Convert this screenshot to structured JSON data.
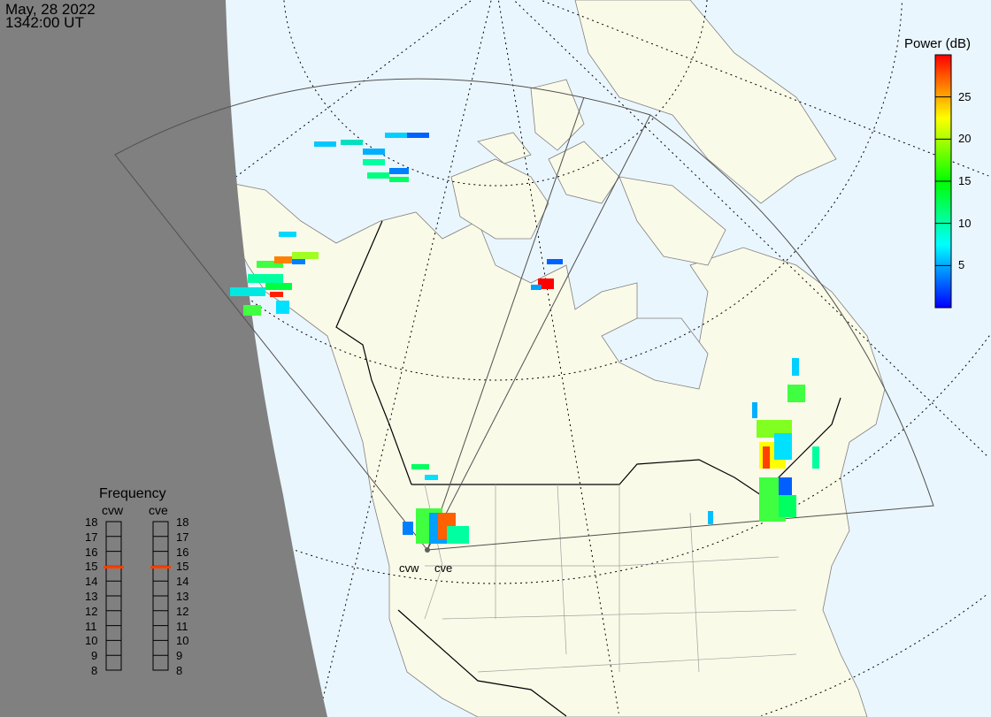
{
  "header": {
    "date": "May, 28 2022",
    "time": "1342:00 UT"
  },
  "colorbar": {
    "title": "Power (dB)",
    "ticks": [
      "25",
      "20",
      "15",
      "10",
      "5"
    ],
    "range": [
      0,
      30
    ],
    "colors": [
      "#0000ff",
      "#0080ff",
      "#00ffff",
      "#00ff80",
      "#00ff00",
      "#80ff00",
      "#ffff00",
      "#ff8000",
      "#ff0000"
    ]
  },
  "radars": [
    {
      "code": "cvw"
    },
    {
      "code": "cve"
    }
  ],
  "frequency": {
    "title": "Frequency",
    "scale": [
      "18",
      "17",
      "16",
      "15",
      "14",
      "13",
      "12",
      "11",
      "10",
      "9",
      "8"
    ],
    "cvw_mhz": 14.9,
    "cve_mhz": 14.9,
    "marker_color": "#ff4000"
  },
  "colors": {
    "ocean": "#eaf6fd",
    "land": "#fafae8",
    "night": "#808080"
  }
}
